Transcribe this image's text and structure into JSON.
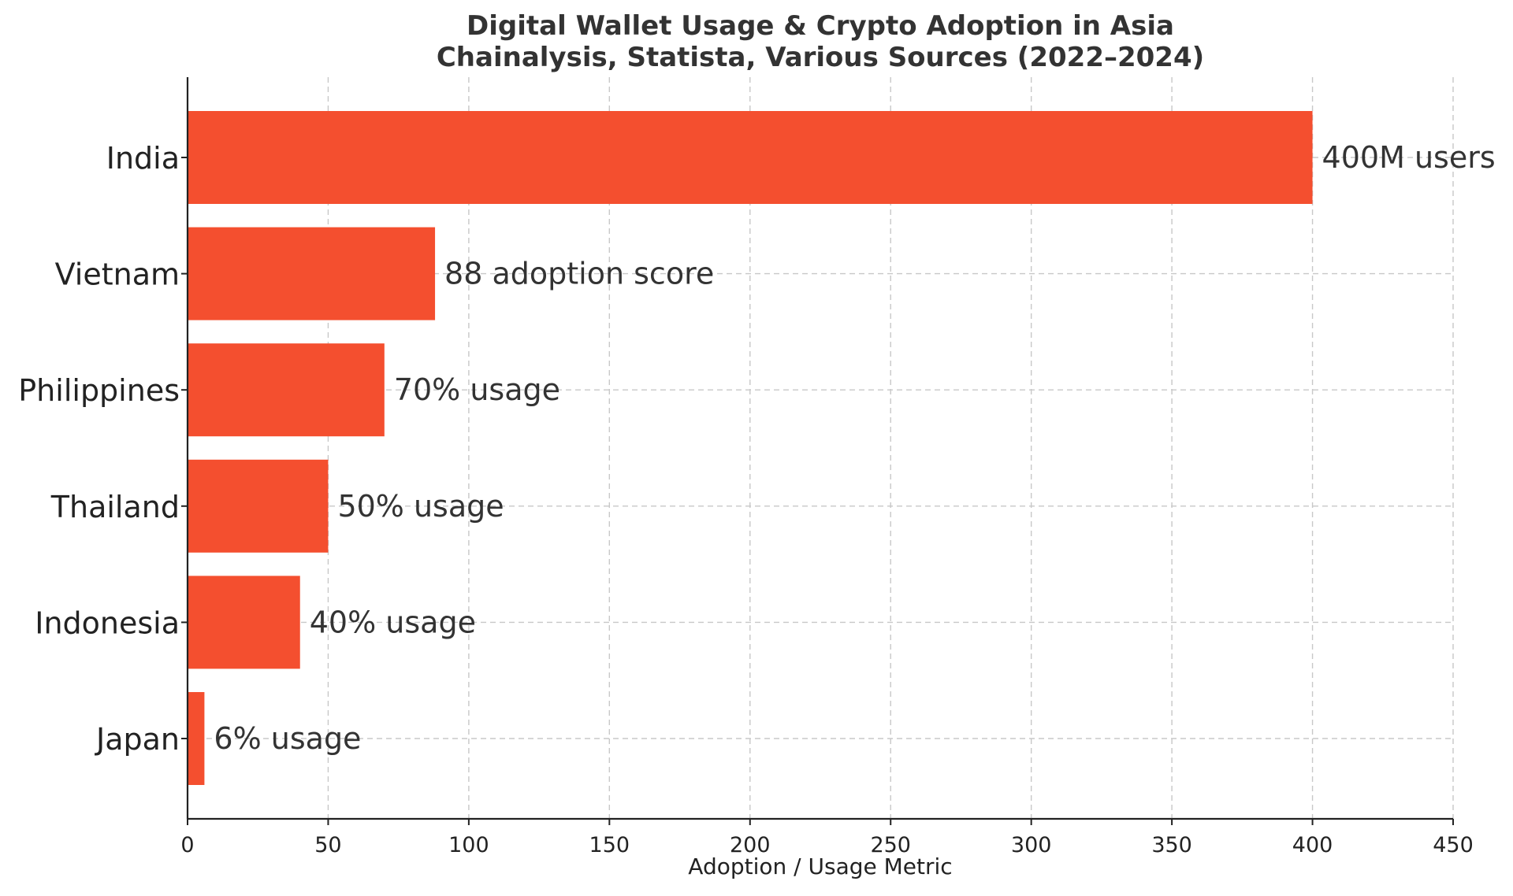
{
  "chart_data": {
    "type": "bar",
    "orientation": "horizontal",
    "title": "Digital Wallet Usage & Crypto Adoption in Asia",
    "subtitle": "Chainalysis, Statista, Various Sources (2022–2024)",
    "xlabel": "Adoption / Usage Metric",
    "ylabel": "",
    "xlim": [
      0,
      450
    ],
    "xticks": [
      0,
      50,
      100,
      150,
      200,
      250,
      300,
      350,
      400,
      450
    ],
    "grid": true,
    "bar_color": "#F44F2F",
    "categories": [
      "India",
      "Vietnam",
      "Philippines",
      "Thailand",
      "Indonesia",
      "Japan"
    ],
    "values": [
      400,
      88,
      70,
      50,
      40,
      6
    ],
    "data_labels": [
      "400M users",
      "88 adoption score",
      "70% usage",
      "50% usage",
      "40% usage",
      "6% usage"
    ]
  }
}
